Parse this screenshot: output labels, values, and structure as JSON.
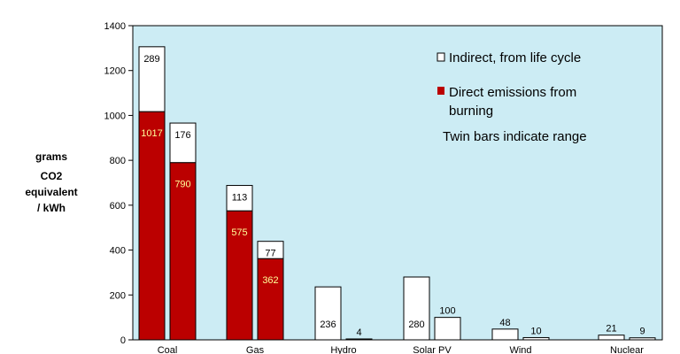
{
  "chart_data": {
    "type": "bar",
    "stacked": true,
    "ylabel": [
      "grams",
      "CO2",
      "equivalent",
      "/ kWh"
    ],
    "ylim": [
      0,
      1400
    ],
    "yticks": [
      0,
      200,
      400,
      600,
      800,
      1000,
      1200,
      1400
    ],
    "grid": false,
    "categories": [
      "Coal",
      "Gas",
      "Hydro",
      "Solar PV",
      "Wind",
      "Nuclear"
    ],
    "series": [
      {
        "name": "Direct emissions from burning",
        "color": "#bb0000"
      },
      {
        "name": "Indirect, from life cycle",
        "color": "#ffffff"
      }
    ],
    "bars": [
      {
        "category": "Coal",
        "direct": 1017,
        "indirect": 289
      },
      {
        "category": "Coal",
        "direct": 790,
        "indirect": 176
      },
      {
        "category": "Gas",
        "direct": 575,
        "indirect": 113
      },
      {
        "category": "Gas",
        "direct": 362,
        "indirect": 77
      },
      {
        "category": "Hydro",
        "direct": 0,
        "indirect": 236
      },
      {
        "category": "Hydro",
        "direct": 0,
        "indirect": 4
      },
      {
        "category": "Solar PV",
        "direct": 0,
        "indirect": 280
      },
      {
        "category": "Solar PV",
        "direct": 0,
        "indirect": 100
      },
      {
        "category": "Wind",
        "direct": 0,
        "indirect": 48
      },
      {
        "category": "Wind",
        "direct": 0,
        "indirect": 10
      },
      {
        "category": "Nuclear",
        "direct": 0,
        "indirect": 21
      },
      {
        "category": "Nuclear",
        "direct": 0,
        "indirect": 9
      }
    ],
    "legend": {
      "indirect_label": "Indirect, from life cycle",
      "direct_label_line1": "Direct emissions from",
      "direct_label_line2": "burning",
      "note": "Twin bars indicate range"
    },
    "plot_background": "#ccecf4",
    "indirect_label_color": "#000000",
    "direct_label_color": "#ffff99"
  }
}
